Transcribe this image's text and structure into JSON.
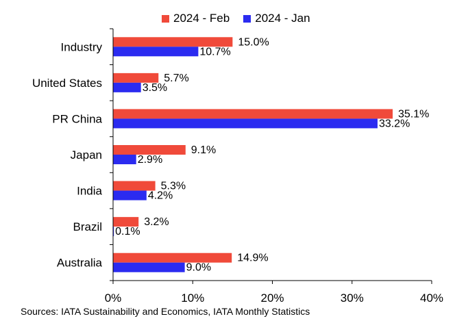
{
  "chart_data": {
    "type": "bar",
    "orientation": "horizontal",
    "categories": [
      "Industry",
      "United States",
      "PR China",
      "Japan",
      "India",
      "Brazil",
      "Australia"
    ],
    "series": [
      {
        "name": "2024 - Feb",
        "color": "#f04a3a",
        "values": [
          15.0,
          5.7,
          35.1,
          9.1,
          5.3,
          3.2,
          14.9
        ],
        "labels": [
          "15.0%",
          "5.7%",
          "35.1%",
          "9.1%",
          "5.3%",
          "3.2%",
          "14.9%"
        ]
      },
      {
        "name": "2024 - Jan",
        "color": "#2b2bf0",
        "values": [
          10.7,
          3.5,
          33.2,
          2.9,
          4.2,
          0.1,
          9.0
        ],
        "labels": [
          "10.7%",
          "3.5%",
          "33.2%",
          "2.9%",
          "4.2%",
          "0.1%",
          "9.0%"
        ]
      }
    ],
    "xlim": [
      0,
      40
    ],
    "xticks": [
      0,
      10,
      20,
      30,
      40
    ],
    "xtick_labels": [
      "0%",
      "10%",
      "20%",
      "30%",
      "40%"
    ],
    "legend_position": "top-center",
    "grid": false
  },
  "source": "Sources: IATA Sustainability and Economics, IATA Monthly Statistics"
}
